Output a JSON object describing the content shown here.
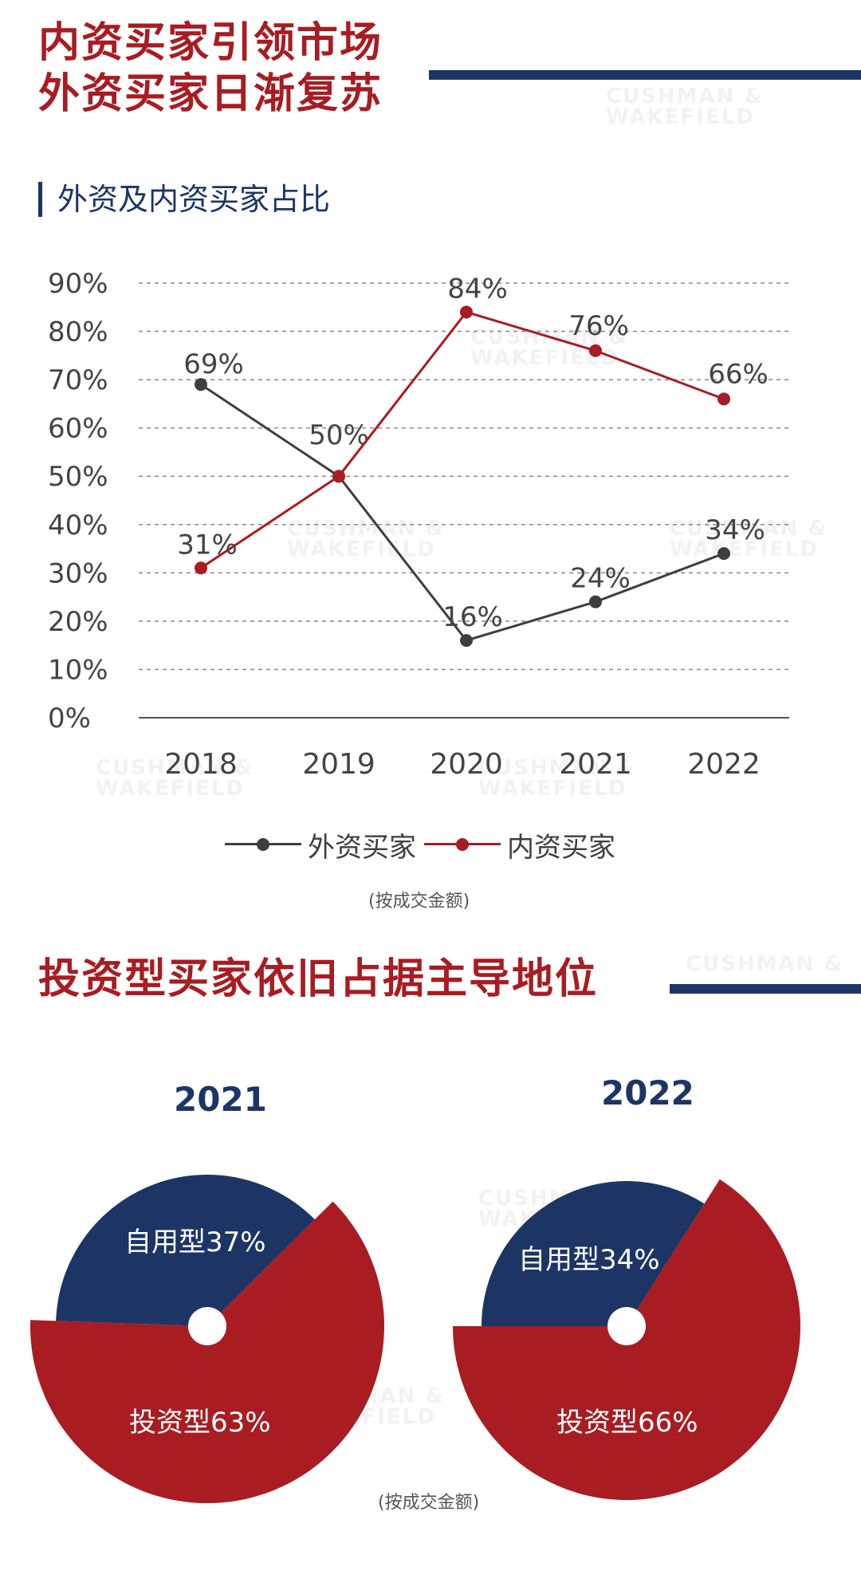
{
  "header": {
    "title_line1": "内资买家引领市场",
    "title_line2": "外资买家日渐复苏",
    "subtitle": "外资及内资买家占比"
  },
  "watermark": {
    "line1": "CUSHMAN &",
    "line2": "WAKEFIELD"
  },
  "colors": {
    "navy": "#1c3565",
    "red": "#a81c22",
    "gray": "#3e3e3e"
  },
  "chart_data": [
    {
      "type": "line",
      "categories": [
        "2018",
        "2019",
        "2020",
        "2021",
        "2022"
      ],
      "series": [
        {
          "name": "外资买家",
          "values": [
            69,
            50,
            16,
            24,
            34
          ],
          "labels": [
            "69%",
            "50%",
            "16%",
            "24%",
            "34%"
          ],
          "color": "#3e3e3e"
        },
        {
          "name": "内资买家",
          "values": [
            31,
            50,
            84,
            76,
            66
          ],
          "labels": [
            "31%",
            "",
            "84%",
            "76%",
            "66%"
          ],
          "color": "#a81c22"
        }
      ],
      "ylim": [
        0,
        90
      ],
      "yticks": [
        "0%",
        "10%",
        "20%",
        "30%",
        "40%",
        "50%",
        "60%",
        "70%",
        "80%",
        "90%"
      ],
      "grid": true,
      "legend": "bottom",
      "note": "(按成交金额)"
    },
    {
      "type": "pie",
      "title": "2021",
      "slices": [
        {
          "name": "自用型",
          "label": "自用型37%",
          "value": 37,
          "color": "#1c3565"
        },
        {
          "name": "投资型",
          "label": "投资型63%",
          "value": 63,
          "color": "#a81c22"
        }
      ]
    },
    {
      "type": "pie",
      "title": "2022",
      "slices": [
        {
          "name": "自用型",
          "label": "自用型34%",
          "value": 34,
          "color": "#1c3565"
        },
        {
          "name": "投资型",
          "label": "投资型66%",
          "value": 66,
          "color": "#a81c22"
        }
      ]
    }
  ],
  "section2": {
    "title": "投资型买家依旧占据主导地位"
  },
  "pie_note": "(按成交金额)"
}
